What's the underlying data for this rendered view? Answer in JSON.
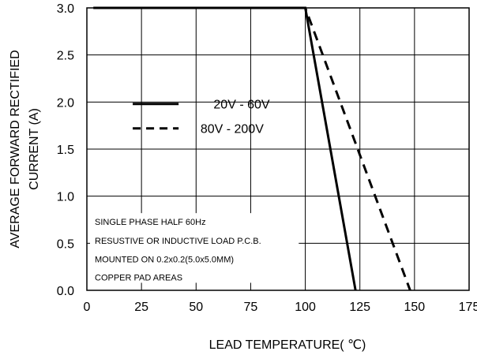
{
  "chart_data": {
    "type": "line",
    "title": "",
    "xlabel": "LEAD TEMPERATURE( ℃)",
    "ylabel_line1": "AVERAGE FORWARD RECTIFIED",
    "ylabel_line2": "CURRENT (A)",
    "xlim": [
      0,
      175
    ],
    "ylim": [
      0,
      3.0
    ],
    "x_ticks": [
      0,
      25,
      50,
      75,
      100,
      125,
      150,
      175
    ],
    "x_tick_labels": [
      "0",
      "25",
      "50",
      "75",
      "100",
      "125",
      "150",
      "175"
    ],
    "y_ticks": [
      0,
      0.5,
      1.0,
      1.5,
      2.0,
      2.5,
      3.0
    ],
    "y_tick_labels": [
      "0.0",
      "0.5",
      "1.0",
      "1.5",
      "2.0",
      "2.5",
      "3.0"
    ],
    "grid": true,
    "legend_position": "upper-left",
    "series": [
      {
        "name": "20V - 60V",
        "style": "solid",
        "color": "#000000",
        "x": [
          3,
          100,
          123
        ],
        "y": [
          3.0,
          3.0,
          0.0
        ]
      },
      {
        "name": "80V - 200V",
        "style": "dashed",
        "color": "#000000",
        "x": [
          3,
          100,
          148
        ],
        "y": [
          3.0,
          3.0,
          0.0
        ]
      }
    ],
    "annotation_lines": [
      "SINGLE PHASE HALF 60Hz",
      "RESUSTIVE OR INDUCTIVE LOAD P.C.B.",
      "MOUNTED ON 0.2x0.2(5.0x5.0MM)",
      "COPPER PAD AREAS"
    ]
  }
}
